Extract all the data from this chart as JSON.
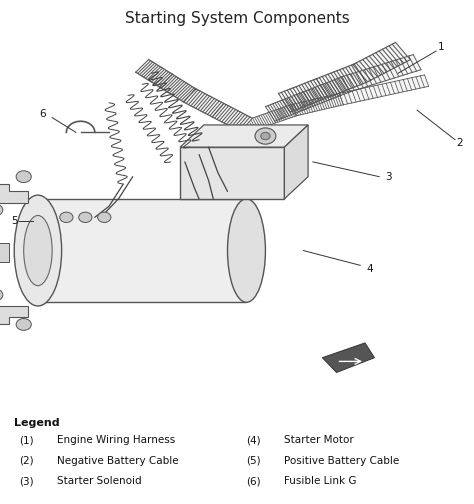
{
  "title": "Starting System Components",
  "title_fontsize": 11,
  "title_bg_color": "#d4f0d4",
  "diagram_bg_color": "#ffffff",
  "border_color": "#999999",
  "legend_title": "Legend",
  "legend_title_fontsize": 8,
  "legend_fontsize": 7.5,
  "legend_items_left": [
    [
      "(1)",
      "Engine Wiring Harness"
    ],
    [
      "(2)",
      "Negative Battery Cable"
    ],
    [
      "(3)",
      "Starter Solenoid"
    ]
  ],
  "legend_items_right": [
    [
      "(4)",
      "Starter Motor"
    ],
    [
      "(5)",
      "Positive Battery Cable"
    ],
    [
      "(6)",
      "Fusible Link G"
    ]
  ],
  "fig_width": 4.74,
  "fig_height": 5.04,
  "dpi": 100
}
